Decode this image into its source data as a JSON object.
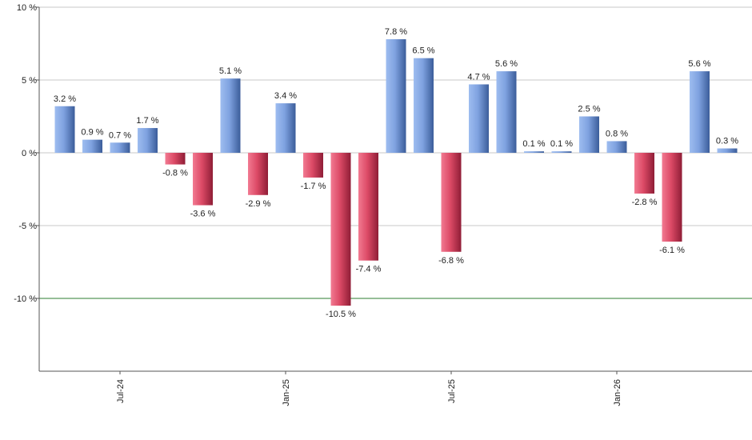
{
  "chart_data": {
    "type": "bar",
    "title": "",
    "xlabel": "",
    "ylabel": "",
    "ylim": [
      -15,
      10
    ],
    "y_ticks": [
      {
        "value": 10,
        "label": "10 %"
      },
      {
        "value": 5,
        "label": "5 %"
      },
      {
        "value": 0,
        "label": "0 %"
      },
      {
        "value": -5,
        "label": "-5 %"
      },
      {
        "value": -10,
        "label": "-10 %"
      }
    ],
    "x_ticks": [
      {
        "index": 2,
        "label": "Jul-24"
      },
      {
        "index": 8,
        "label": "Jan-25"
      },
      {
        "index": 14,
        "label": "Jul-25"
      },
      {
        "index": 20,
        "label": "Jan-26"
      }
    ],
    "reference_line": {
      "value": -10,
      "color": "#2e7d32"
    },
    "grid": true,
    "values": [
      3.2,
      0.9,
      0.7,
      1.7,
      -0.8,
      -3.6,
      5.1,
      -2.9,
      3.4,
      -1.7,
      -10.5,
      -7.4,
      7.8,
      6.5,
      -6.8,
      4.7,
      5.6,
      0.1,
      0.1,
      2.5,
      0.8,
      -2.8,
      -6.1,
      5.6,
      0.3
    ],
    "labels": [
      "3.2 %",
      "0.9 %",
      "0.7 %",
      "1.7 %",
      "-0.8 %",
      "-3.6 %",
      "5.1 %",
      "-2.9 %",
      "3.4 %",
      "-1.7 %",
      "-10.5 %",
      "-7.4 %",
      "7.8 %",
      "6.5 %",
      "-6.8 %",
      "4.7 %",
      "5.6 %",
      "0.1 %",
      "0.1 %",
      "2.5 %",
      "0.8 %",
      "-2.8 %",
      "-6.1 %",
      "5.6 %",
      "0.3 %"
    ],
    "colors": {
      "positive": "#6f95d6",
      "negative": "#d8405d"
    }
  }
}
